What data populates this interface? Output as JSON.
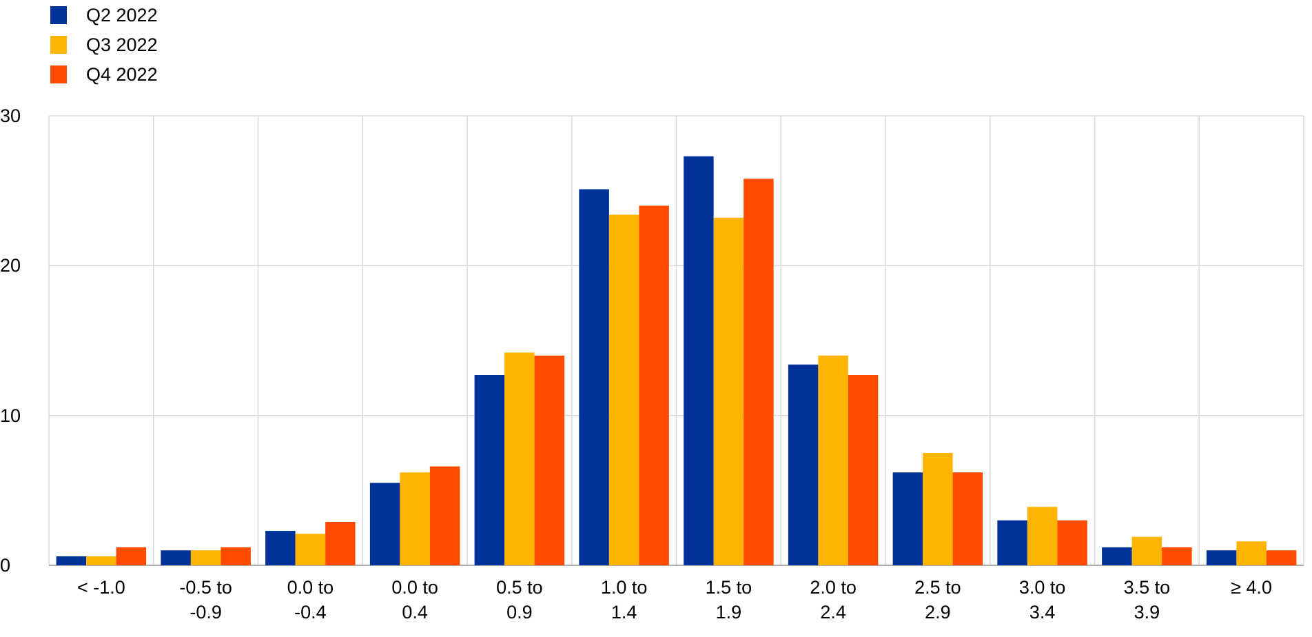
{
  "chart_data": {
    "type": "bar",
    "categories": [
      "< -1.0",
      "-0.5 to -0.9",
      "0.0 to -0.4",
      "0.0 to 0.4",
      "0.5 to 0.9",
      "1.0 to 1.4",
      "1.5 to 1.9",
      "2.0 to 2.4",
      "2.5 to 2.9",
      "3.0 to 3.4",
      "3.5 to 3.9",
      "≥ 4.0"
    ],
    "series": [
      {
        "name": "Q2 2022",
        "color": "#003299",
        "values": [
          0.6,
          1.0,
          2.3,
          5.5,
          12.7,
          25.1,
          27.3,
          13.4,
          6.2,
          3.0,
          1.2,
          1.0
        ]
      },
      {
        "name": "Q3 2022",
        "color": "#ffb400",
        "values": [
          0.6,
          1.0,
          2.1,
          6.2,
          14.2,
          23.4,
          23.2,
          14.0,
          7.5,
          3.9,
          1.9,
          1.6
        ]
      },
      {
        "name": "Q4 2022",
        "color": "#ff4b00",
        "values": [
          1.2,
          1.2,
          2.9,
          6.6,
          14.0,
          24.0,
          25.8,
          12.7,
          6.2,
          3.0,
          1.2,
          1.0
        ]
      }
    ],
    "ylim": [
      0,
      30
    ],
    "yticks": [
      0,
      10,
      20,
      30
    ],
    "grid": true
  }
}
